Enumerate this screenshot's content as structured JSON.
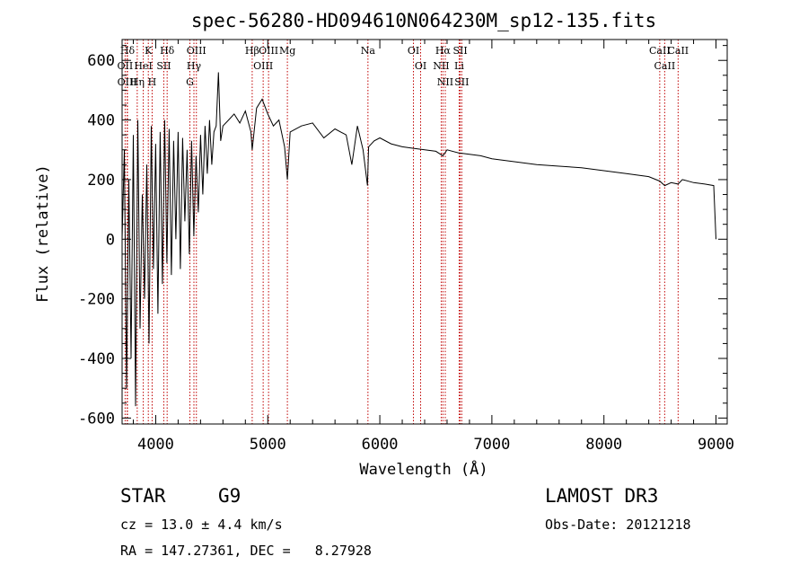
{
  "chart_data": {
    "type": "line",
    "title": "spec-56280-HD094610N064230M_sp12-135.fits",
    "xlabel": "Wavelength (Å)",
    "ylabel": "Flux (relative)",
    "xlim": [
      3700,
      9100
    ],
    "ylim": [
      -620,
      670
    ],
    "xticks": [
      4000,
      5000,
      6000,
      7000,
      8000,
      9000
    ],
    "yticks": [
      -600,
      -400,
      -200,
      0,
      200,
      400,
      600
    ],
    "series": [
      {
        "name": "flux",
        "x": [
          3700,
          3720,
          3740,
          3760,
          3780,
          3800,
          3820,
          3840,
          3860,
          3880,
          3900,
          3920,
          3940,
          3960,
          3980,
          4000,
          4020,
          4040,
          4060,
          4080,
          4100,
          4120,
          4140,
          4160,
          4180,
          4200,
          4220,
          4240,
          4260,
          4280,
          4300,
          4320,
          4340,
          4360,
          4380,
          4400,
          4420,
          4440,
          4460,
          4480,
          4500,
          4520,
          4540,
          4560,
          4580,
          4600,
          4650,
          4700,
          4750,
          4800,
          4850,
          4861,
          4900,
          4950,
          5000,
          5050,
          5100,
          5150,
          5175,
          5200,
          5300,
          5400,
          5500,
          5600,
          5700,
          5750,
          5800,
          5850,
          5890,
          5900,
          5950,
          6000,
          6100,
          6200,
          6300,
          6400,
          6500,
          6563,
          6600,
          6700,
          6800,
          6900,
          7000,
          7200,
          7400,
          7600,
          7800,
          8000,
          8200,
          8400,
          8498,
          8542,
          8600,
          8662,
          8700,
          8800,
          8900,
          8980,
          9000
        ],
        "y": [
          0,
          300,
          -500,
          200,
          -400,
          350,
          -560,
          400,
          -300,
          150,
          -200,
          250,
          -350,
          380,
          -100,
          320,
          -250,
          360,
          -150,
          400,
          -80,
          370,
          -120,
          330,
          0,
          360,
          -100,
          340,
          60,
          300,
          -50,
          330,
          10,
          280,
          90,
          350,
          150,
          380,
          220,
          400,
          250,
          360,
          380,
          560,
          330,
          380,
          400,
          420,
          390,
          430,
          360,
          300,
          440,
          470,
          420,
          380,
          400,
          310,
          200,
          360,
          380,
          390,
          340,
          370,
          350,
          250,
          380,
          300,
          180,
          310,
          330,
          340,
          320,
          310,
          305,
          300,
          295,
          280,
          300,
          290,
          285,
          280,
          270,
          260,
          250,
          245,
          240,
          230,
          220,
          210,
          195,
          180,
          190,
          185,
          200,
          190,
          185,
          180,
          0
        ]
      }
    ],
    "line_markers": [
      {
        "label": "Hδ",
        "x": 3748
      },
      {
        "label": "OII",
        "x": 3727
      },
      {
        "label": "OIII",
        "x": 3745
      },
      {
        "label": "K",
        "x": 3934
      },
      {
        "label": "HeI",
        "x": 3889
      },
      {
        "label": "Hη",
        "x": 3835
      },
      {
        "label": "H",
        "x": 3968
      },
      {
        "label": "SII",
        "x": 4072
      },
      {
        "label": "Hδ",
        "x": 4102
      },
      {
        "label": "OIII",
        "x": 4363
      },
      {
        "label": "Hγ",
        "x": 4341
      },
      {
        "label": "G",
        "x": 4305
      },
      {
        "label": "Hβ",
        "x": 4861
      },
      {
        "label": "OIII",
        "x": 4959
      },
      {
        "label": "OIII",
        "x": 5007
      },
      {
        "label": "Mg",
        "x": 5175
      },
      {
        "label": "Na",
        "x": 5894
      },
      {
        "label": "OI",
        "x": 6300
      },
      {
        "label": "OI",
        "x": 6364
      },
      {
        "label": "Hα",
        "x": 6563
      },
      {
        "label": "NII",
        "x": 6548
      },
      {
        "label": "NII",
        "x": 6584
      },
      {
        "label": "SII",
        "x": 6717
      },
      {
        "label": "Li",
        "x": 6708
      },
      {
        "label": "SII",
        "x": 6731
      },
      {
        "label": "CaII",
        "x": 8498
      },
      {
        "label": "CaII",
        "x": 8542
      },
      {
        "label": "CaII",
        "x": 8662
      }
    ]
  },
  "info": {
    "object_class": "STAR",
    "subclass": "G9",
    "survey": "LAMOST DR3",
    "cz": "cz = 13.0 ± 4.4 km/s",
    "obs_date": "Obs-Date: 20121218",
    "radec": "RA = 147.27361, DEC =   8.27928"
  },
  "colors": {
    "line": "#000000",
    "marker": "#c00000"
  }
}
